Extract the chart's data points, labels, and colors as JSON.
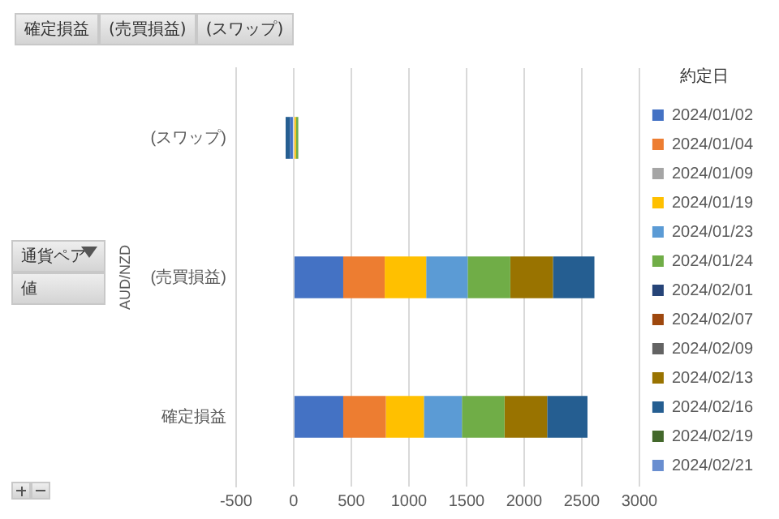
{
  "chart_data": {
    "type": "bar",
    "orientation": "horizontal",
    "stacked": true,
    "categories": [
      "(スワップ)",
      "(売買損益)",
      "確定損益"
    ],
    "ylabel": "AUD/NZD",
    "legend_title": "約定日",
    "legend": "right",
    "grid": "x",
    "xlim": [
      -500,
      3000
    ],
    "xticks": [
      -500,
      0,
      500,
      1000,
      1500,
      2000,
      2500,
      3000
    ],
    "annotations": [
      "確定損益",
      "(売買損益)",
      "(スワップ)",
      "通貨ペア",
      "値"
    ],
    "series": [
      {
        "name": "2024/01/02",
        "color": "#4472c4",
        "values": [
          -30,
          430,
          430
        ]
      },
      {
        "name": "2024/01/04",
        "color": "#ed7d31",
        "values": [
          null,
          360,
          370
        ]
      },
      {
        "name": "2024/01/09",
        "color": "#a5a5a5",
        "values": [
          null,
          null,
          null
        ]
      },
      {
        "name": "2024/01/19",
        "color": "#ffc000",
        "values": [
          20,
          360,
          330
        ]
      },
      {
        "name": "2024/01/23",
        "color": "#5b9bd5",
        "values": [
          null,
          360,
          330
        ]
      },
      {
        "name": "2024/01/24",
        "color": "#70ad47",
        "values": [
          20,
          370,
          370
        ]
      },
      {
        "name": "2024/02/01",
        "color": "#264478",
        "values": [
          null,
          null,
          null
        ]
      },
      {
        "name": "2024/02/07",
        "color": "#9e480e",
        "values": [
          null,
          null,
          null
        ]
      },
      {
        "name": "2024/02/09",
        "color": "#636363",
        "values": [
          null,
          null,
          null
        ]
      },
      {
        "name": "2024/02/13",
        "color": "#997300",
        "values": [
          null,
          370,
          370
        ]
      },
      {
        "name": "2024/02/16",
        "color": "#255e91",
        "values": [
          -40,
          360,
          350
        ]
      },
      {
        "name": "2024/02/19",
        "color": "#43682b",
        "values": [
          null,
          null,
          null
        ]
      },
      {
        "name": "2024/02/21",
        "color": "#698ed0",
        "values": [
          null,
          null,
          null
        ]
      }
    ]
  }
}
